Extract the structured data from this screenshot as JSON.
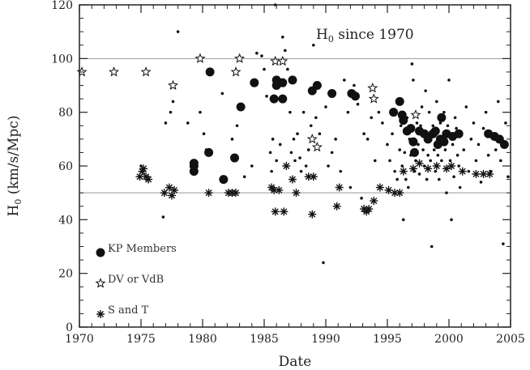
{
  "chart_data": {
    "type": "scatter",
    "title": "H0 since 1970",
    "xlabel": "Date",
    "ylabel": "H0 (km/s/Mpc)",
    "xlim": [
      1970,
      2005
    ],
    "ylim": [
      0,
      120
    ],
    "xticks": [
      1970,
      1975,
      1980,
      1985,
      1990,
      1995,
      2000,
      2005
    ],
    "yticks": [
      0,
      20,
      40,
      60,
      80,
      100,
      120
    ],
    "reference_lines": [
      50,
      100
    ],
    "legend_position": "bottom-left",
    "colors": {
      "marks": "#111111",
      "reference_line": "#999999",
      "axis": "#222222"
    },
    "series": [
      {
        "name": "KP Members",
        "marker": "filled-circle",
        "points": [
          [
            1979.3,
            58
          ],
          [
            1979.3,
            60
          ],
          [
            1979.3,
            61
          ],
          [
            1980.5,
            65
          ],
          [
            1980.6,
            95
          ],
          [
            1981.7,
            55
          ],
          [
            1982.6,
            63
          ],
          [
            1983.1,
            82
          ],
          [
            1984.2,
            91
          ],
          [
            1985.8,
            85
          ],
          [
            1986.0,
            92
          ],
          [
            1986.0,
            90
          ],
          [
            1986.5,
            85
          ],
          [
            1986.5,
            91
          ],
          [
            1987.3,
            92
          ],
          [
            1988.9,
            88
          ],
          [
            1989.3,
            90
          ],
          [
            1990.5,
            87
          ],
          [
            1992.1,
            87
          ],
          [
            1992.4,
            86
          ],
          [
            1995.5,
            80
          ],
          [
            1996.0,
            84
          ],
          [
            1996.2,
            79
          ],
          [
            1996.3,
            77
          ],
          [
            1996.6,
            73
          ],
          [
            1996.9,
            74
          ],
          [
            1997.1,
            69
          ],
          [
            1997.2,
            65
          ],
          [
            1997.6,
            73
          ],
          [
            1998.0,
            72
          ],
          [
            1998.3,
            70
          ],
          [
            1998.7,
            72
          ],
          [
            1998.9,
            73
          ],
          [
            1999.1,
            68
          ],
          [
            1999.3,
            70
          ],
          [
            1999.4,
            78
          ],
          [
            1999.6,
            69
          ],
          [
            1999.8,
            72
          ],
          [
            2000.3,
            71
          ],
          [
            2000.8,
            72
          ],
          [
            2003.2,
            72
          ],
          [
            2003.7,
            71
          ],
          [
            2004.1,
            70
          ],
          [
            2004.5,
            68
          ]
        ]
      },
      {
        "name": "DV or VdB",
        "marker": "open-star",
        "points": [
          [
            1970.2,
            95
          ],
          [
            1972.8,
            95
          ],
          [
            1975.4,
            95
          ],
          [
            1977.6,
            90
          ],
          [
            1979.8,
            100
          ],
          [
            1982.7,
            95
          ],
          [
            1983.0,
            100
          ],
          [
            1985.9,
            99
          ],
          [
            1986.5,
            99
          ],
          [
            1988.9,
            70
          ],
          [
            1989.3,
            67
          ],
          [
            1993.8,
            89
          ],
          [
            1993.9,
            85
          ],
          [
            1997.3,
            79
          ]
        ]
      },
      {
        "name": "S and T",
        "marker": "asterisk",
        "points": [
          [
            1974.9,
            56
          ],
          [
            1975.1,
            58
          ],
          [
            1975.2,
            59
          ],
          [
            1975.4,
            56
          ],
          [
            1975.6,
            55
          ],
          [
            1976.9,
            50
          ],
          [
            1977.3,
            52
          ],
          [
            1977.5,
            49
          ],
          [
            1977.7,
            51
          ],
          [
            1980.5,
            50
          ],
          [
            1982.1,
            50
          ],
          [
            1982.4,
            50
          ],
          [
            1982.7,
            50
          ],
          [
            1985.6,
            52
          ],
          [
            1985.8,
            51
          ],
          [
            1985.9,
            43
          ],
          [
            1986.2,
            51
          ],
          [
            1986.6,
            43
          ],
          [
            1986.8,
            60
          ],
          [
            1987.3,
            55
          ],
          [
            1987.6,
            50
          ],
          [
            1988.6,
            56
          ],
          [
            1988.9,
            42
          ],
          [
            1989.0,
            56
          ],
          [
            1990.9,
            45
          ],
          [
            1991.1,
            52
          ],
          [
            1993.1,
            44
          ],
          [
            1993.3,
            43
          ],
          [
            1993.5,
            44
          ],
          [
            1993.9,
            47
          ],
          [
            1994.4,
            52
          ],
          [
            1995.1,
            51
          ],
          [
            1995.6,
            50
          ],
          [
            1996.0,
            50
          ],
          [
            1996.3,
            58
          ],
          [
            1997.1,
            59
          ],
          [
            1997.6,
            61
          ],
          [
            1998.3,
            59
          ],
          [
            1999.0,
            60
          ],
          [
            1999.8,
            59
          ],
          [
            2000.2,
            60
          ],
          [
            2001.1,
            58
          ],
          [
            2002.2,
            57
          ],
          [
            2002.8,
            57
          ],
          [
            2003.3,
            57
          ]
        ]
      },
      {
        "name": "",
        "marker": "small-dot",
        "points": [
          [
            1975.0,
            60
          ],
          [
            1976.8,
            41
          ],
          [
            1977.0,
            76
          ],
          [
            1977.4,
            80
          ],
          [
            1977.6,
            84
          ],
          [
            1978.0,
            110
          ],
          [
            1978.8,
            76
          ],
          [
            1979.8,
            80
          ],
          [
            1980.1,
            72
          ],
          [
            1980.3,
            66
          ],
          [
            1981.6,
            87
          ],
          [
            1982.4,
            70
          ],
          [
            1982.8,
            75
          ],
          [
            1983.4,
            56
          ],
          [
            1984.0,
            60
          ],
          [
            1984.4,
            102
          ],
          [
            1984.8,
            101
          ],
          [
            1985.0,
            96
          ],
          [
            1985.2,
            86
          ],
          [
            1985.5,
            65
          ],
          [
            1985.6,
            58
          ],
          [
            1985.7,
            70
          ],
          [
            1985.9,
            120
          ],
          [
            1986.0,
            62
          ],
          [
            1986.3,
            68
          ],
          [
            1986.5,
            108
          ],
          [
            1986.7,
            103
          ],
          [
            1986.9,
            96
          ],
          [
            1987.1,
            80
          ],
          [
            1987.2,
            65
          ],
          [
            1987.4,
            70
          ],
          [
            1987.5,
            62
          ],
          [
            1987.7,
            72
          ],
          [
            1987.9,
            63
          ],
          [
            1988.0,
            58
          ],
          [
            1988.2,
            80
          ],
          [
            1988.4,
            60
          ],
          [
            1988.6,
            66
          ],
          [
            1988.8,
            75
          ],
          [
            1989.0,
            105
          ],
          [
            1989.2,
            78
          ],
          [
            1989.5,
            72
          ],
          [
            1989.8,
            24
          ],
          [
            1990.0,
            82
          ],
          [
            1990.2,
            60
          ],
          [
            1990.5,
            65
          ],
          [
            1990.8,
            70
          ],
          [
            1991.2,
            58
          ],
          [
            1991.5,
            92
          ],
          [
            1991.8,
            80
          ],
          [
            1992.0,
            52
          ],
          [
            1992.3,
            90
          ],
          [
            1992.6,
            83
          ],
          [
            1992.9,
            48
          ],
          [
            1993.1,
            72
          ],
          [
            1993.4,
            70
          ],
          [
            1993.7,
            78
          ],
          [
            1994.0,
            62
          ],
          [
            1994.3,
            80
          ],
          [
            1994.6,
            76
          ],
          [
            1995.0,
            68
          ],
          [
            1995.2,
            62
          ],
          [
            1995.4,
            72
          ],
          [
            1995.6,
            58
          ],
          [
            1995.8,
            55
          ],
          [
            1996.0,
            66
          ],
          [
            1996.1,
            75
          ],
          [
            1996.2,
            60
          ],
          [
            1996.3,
            40
          ],
          [
            1996.4,
            65
          ],
          [
            1996.5,
            55
          ],
          [
            1996.6,
            78
          ],
          [
            1996.7,
            52
          ],
          [
            1996.8,
            70
          ],
          [
            1996.9,
            64
          ],
          [
            1997.0,
            98
          ],
          [
            1997.1,
            92
          ],
          [
            1997.2,
            58
          ],
          [
            1997.3,
            62
          ],
          [
            1997.4,
            76
          ],
          [
            1997.5,
            68
          ],
          [
            1997.6,
            57
          ],
          [
            1997.7,
            75
          ],
          [
            1997.8,
            82
          ],
          [
            1997.9,
            66
          ],
          [
            1998.0,
            60
          ],
          [
            1998.1,
            88
          ],
          [
            1998.2,
            55
          ],
          [
            1998.3,
            64
          ],
          [
            1998.4,
            80
          ],
          [
            1998.5,
            62
          ],
          [
            1998.6,
            30
          ],
          [
            1998.7,
            75
          ],
          [
            1998.8,
            66
          ],
          [
            1998.9,
            58
          ],
          [
            1999.0,
            84
          ],
          [
            1999.1,
            64
          ],
          [
            1999.2,
            55
          ],
          [
            1999.3,
            76
          ],
          [
            1999.4,
            62
          ],
          [
            1999.5,
            70
          ],
          [
            1999.6,
            80
          ],
          [
            1999.7,
            66
          ],
          [
            1999.8,
            50
          ],
          [
            1999.9,
            75
          ],
          [
            2000.0,
            92
          ],
          [
            2000.1,
            62
          ],
          [
            2000.2,
            40
          ],
          [
            2000.3,
            68
          ],
          [
            2000.4,
            56
          ],
          [
            2000.5,
            78
          ],
          [
            2000.6,
            74
          ],
          [
            2000.7,
            64
          ],
          [
            2000.8,
            60
          ],
          [
            2000.9,
            52
          ],
          [
            2001.0,
            72
          ],
          [
            2001.2,
            66
          ],
          [
            2001.4,
            82
          ],
          [
            2001.6,
            58
          ],
          [
            2001.8,
            70
          ],
          [
            2002.0,
            76
          ],
          [
            2002.2,
            62
          ],
          [
            2002.4,
            68
          ],
          [
            2002.6,
            54
          ],
          [
            2002.8,
            74
          ],
          [
            2003.0,
            80
          ],
          [
            2003.2,
            64
          ],
          [
            2003.4,
            58
          ],
          [
            2003.6,
            72
          ],
          [
            2003.8,
            66
          ],
          [
            2004.0,
            84
          ],
          [
            2004.2,
            62
          ],
          [
            2004.4,
            31
          ],
          [
            2004.6,
            76
          ],
          [
            2004.8,
            56
          ]
        ]
      }
    ]
  }
}
